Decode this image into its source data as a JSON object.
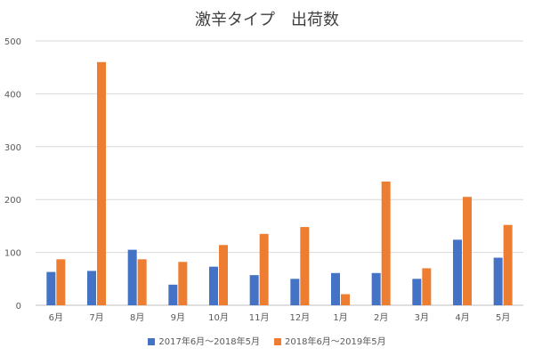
{
  "chart_data": {
    "type": "bar",
    "title": "激辛タイプ　出荷数",
    "xlabel": "",
    "ylabel": "",
    "ylim": [
      0,
      500
    ],
    "yticks": [
      0,
      100,
      200,
      300,
      400,
      500
    ],
    "grid": true,
    "legend_position": "bottom",
    "categories": [
      "6月",
      "7月",
      "8月",
      "9月",
      "10月",
      "11月",
      "12月",
      "1月",
      "2月",
      "3月",
      "4月",
      "5月"
    ],
    "series": [
      {
        "name": "2017年6月～2018年5月",
        "color": "#4472C4",
        "values": [
          63,
          65,
          105,
          39,
          73,
          57,
          50,
          61,
          61,
          50,
          124,
          90
        ]
      },
      {
        "name": "2018年6月～2019年5月",
        "color": "#ED7D31",
        "values": [
          87,
          460,
          87,
          82,
          114,
          135,
          148,
          21,
          234,
          70,
          205,
          152
        ]
      }
    ]
  }
}
